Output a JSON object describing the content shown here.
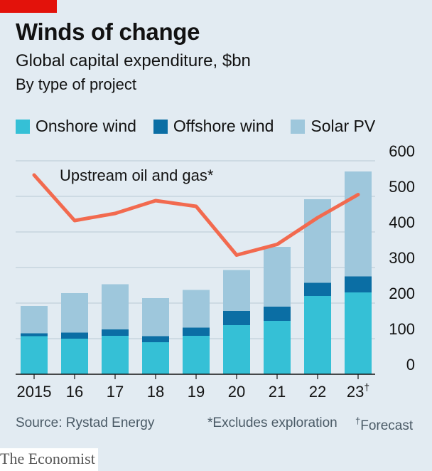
{
  "header": {
    "title": "Winds of change",
    "subtitle": "Global capital expenditure, $bn",
    "subsubtitle": "By type of project"
  },
  "colors": {
    "onshore": "#35c0d6",
    "offshore": "#0b6ea4",
    "solar": "#9ec7dc",
    "line": "#f26a4f",
    "grid": "#b8c8d4",
    "background": "#e2ebf2"
  },
  "chart_data": {
    "type": "bar",
    "stacked": true,
    "categories": [
      "2015",
      "16",
      "17",
      "18",
      "19",
      "20",
      "21",
      "22",
      "23†"
    ],
    "series": [
      {
        "name": "Onshore wind",
        "values": [
          107,
          100,
          108,
          90,
          108,
          138,
          150,
          220,
          230
        ]
      },
      {
        "name": "Offshore wind",
        "values": [
          8,
          17,
          18,
          17,
          23,
          40,
          40,
          37,
          45
        ]
      },
      {
        "name": "Solar PV",
        "values": [
          77,
          111,
          127,
          107,
          106,
          115,
          168,
          235,
          295
        ]
      }
    ],
    "line": {
      "name": "Upstream oil and gas*",
      "values": [
        560,
        432,
        452,
        488,
        472,
        335,
        365,
        440,
        505
      ]
    },
    "ylim": [
      0,
      600
    ],
    "yticks": [
      "0",
      "100",
      "200",
      "300",
      "400",
      "500",
      "600"
    ],
    "yaxis_side": "right",
    "grid": true,
    "legend_placement": "top-left"
  },
  "footer": {
    "source": "Source: Rystad Energy",
    "note_excl": "*Excludes exploration",
    "note_forecast_mark": "†",
    "note_forecast": "Forecast",
    "brand": "The Economist"
  }
}
